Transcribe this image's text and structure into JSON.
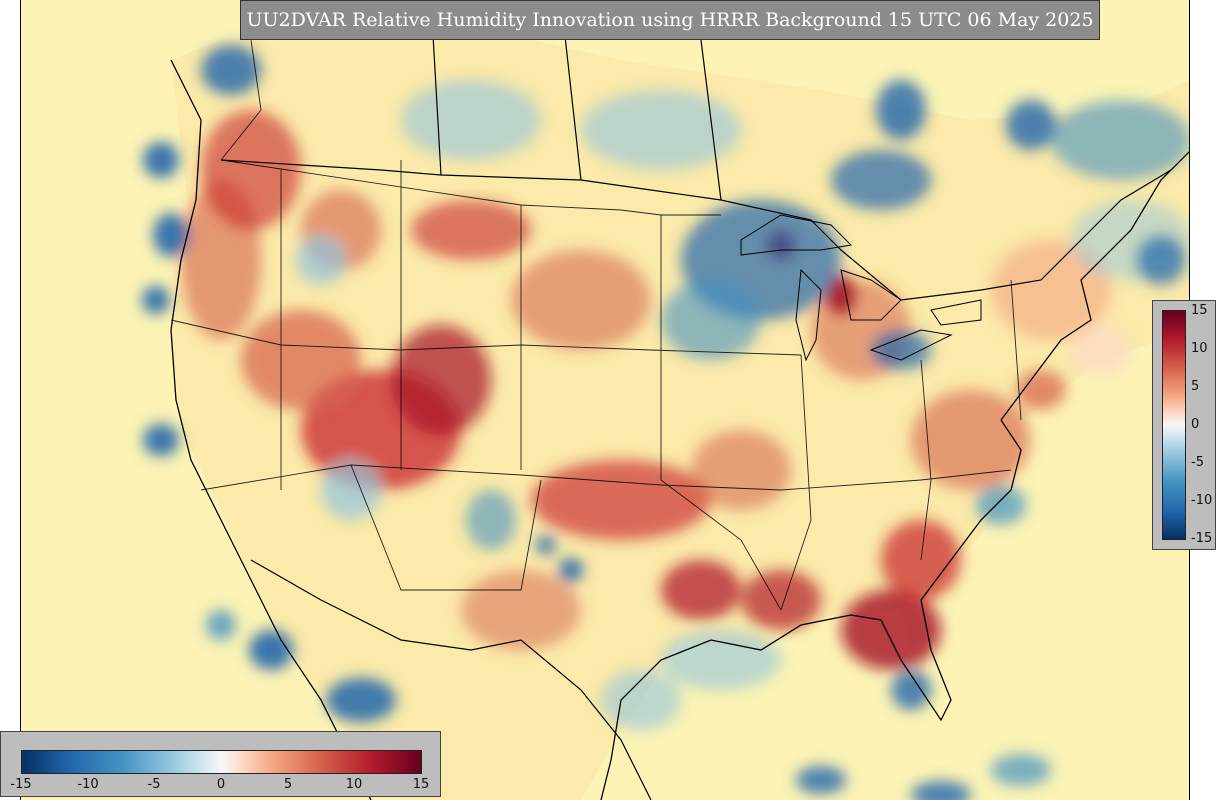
{
  "title": "UU2DVAR Relative Humidity Innovation using HRRR Background 15 UTC 06 May 2025",
  "colorbar": {
    "ticks": [
      "15",
      "10",
      "5",
      "0",
      "-5",
      "-10",
      "-15"
    ],
    "min": -15,
    "max": 15,
    "colormap": "RdBu_r",
    "colors": {
      "dark_red": "#67001f",
      "red": "#b2182b",
      "light_red": "#f4a582",
      "neutral": "#f7f7f7",
      "light_blue": "#92c5de",
      "blue": "#2166ac",
      "dark_blue": "#053061"
    }
  },
  "colors": {
    "background_field": "#fcf3b5",
    "panel": "#bdbdbd",
    "title_bar": "#8c8c8c"
  }
}
